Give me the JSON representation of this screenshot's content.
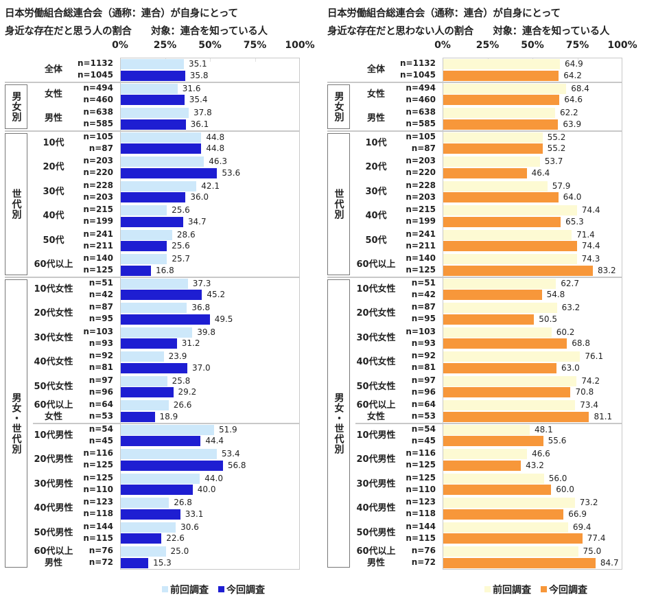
{
  "charts_common": {
    "axis_ticks": [
      "0%",
      "25%",
      "50%",
      "75%",
      "100%"
    ],
    "groups": [
      {
        "label": "男女別",
        "from": 1,
        "to": 2
      },
      {
        "label": "世代別",
        "from": 3,
        "to": 8
      },
      {
        "label": "男女・世代別",
        "from": 9,
        "to": 20
      }
    ],
    "categories": [
      {
        "label": [
          "全体"
        ],
        "n_prev": "n=1132",
        "n_curr": "n=1045"
      },
      {
        "label": [
          "女性"
        ],
        "n_prev": "n=494",
        "n_curr": "n=460"
      },
      {
        "label": [
          "男性"
        ],
        "n_prev": "n=638",
        "n_curr": "n=585"
      },
      {
        "label": [
          "10代"
        ],
        "n_prev": "n=105",
        "n_curr": "n=87"
      },
      {
        "label": [
          "20代"
        ],
        "n_prev": "n=203",
        "n_curr": "n=220"
      },
      {
        "label": [
          "30代"
        ],
        "n_prev": "n=228",
        "n_curr": "n=203"
      },
      {
        "label": [
          "40代"
        ],
        "n_prev": "n=215",
        "n_curr": "n=199"
      },
      {
        "label": [
          "50代"
        ],
        "n_prev": "n=241",
        "n_curr": "n=211"
      },
      {
        "label": [
          "60代以上"
        ],
        "n_prev": "n=140",
        "n_curr": "n=125"
      },
      {
        "label": [
          "10代女性"
        ],
        "n_prev": "n=51",
        "n_curr": "n=42"
      },
      {
        "label": [
          "20代女性"
        ],
        "n_prev": "n=87",
        "n_curr": "n=95"
      },
      {
        "label": [
          "30代女性"
        ],
        "n_prev": "n=103",
        "n_curr": "n=93"
      },
      {
        "label": [
          "40代女性"
        ],
        "n_prev": "n=92",
        "n_curr": "n=81"
      },
      {
        "label": [
          "50代女性"
        ],
        "n_prev": "n=97",
        "n_curr": "n=96"
      },
      {
        "label": [
          "60代以上",
          "女性"
        ],
        "n_prev": "n=64",
        "n_curr": "n=53"
      },
      {
        "label": [
          "10代男性"
        ],
        "n_prev": "n=54",
        "n_curr": "n=45"
      },
      {
        "label": [
          "20代男性"
        ],
        "n_prev": "n=116",
        "n_curr": "n=125"
      },
      {
        "label": [
          "30代男性"
        ],
        "n_prev": "n=125",
        "n_curr": "n=110"
      },
      {
        "label": [
          "40代男性"
        ],
        "n_prev": "n=123",
        "n_curr": "n=118"
      },
      {
        "label": [
          "50代男性"
        ],
        "n_prev": "n=144",
        "n_curr": "n=115"
      },
      {
        "label": [
          "60代以上",
          "男性"
        ],
        "n_prev": "n=76",
        "n_curr": "n=72"
      }
    ]
  },
  "chart_data": [
    {
      "type": "bar",
      "orientation": "horizontal",
      "title": [
        "日本労働組合総連合会（通称：連合）が自身にとって",
        "身近な存在だと思う人の割合　　対象：連合を知っている人"
      ],
      "xlim": [
        0,
        100
      ],
      "grid": true,
      "legend_placement": "bottom",
      "series": [
        {
          "name": "前回調査",
          "color": "#cde8fa",
          "values": [
            35.1,
            31.6,
            37.8,
            44.8,
            46.3,
            42.1,
            25.6,
            28.6,
            25.7,
            37.3,
            36.8,
            39.8,
            23.9,
            25.8,
            26.6,
            51.9,
            53.4,
            44.0,
            26.8,
            30.6,
            25.0
          ]
        },
        {
          "name": "今回調査",
          "color": "#1e1ed2",
          "values": [
            35.8,
            35.4,
            36.1,
            44.8,
            53.6,
            36.0,
            34.7,
            25.6,
            16.8,
            45.2,
            49.5,
            31.2,
            37.0,
            29.2,
            18.9,
            44.4,
            56.8,
            40.0,
            33.1,
            22.6,
            15.3
          ]
        }
      ]
    },
    {
      "type": "bar",
      "orientation": "horizontal",
      "title": [
        "日本労働組合総連合会（通称：連合）が自身にとって",
        "身近な存在だと思わない人の割合　　対象：連合を知っている人"
      ],
      "xlim": [
        0,
        100
      ],
      "grid": true,
      "legend_placement": "bottom",
      "series": [
        {
          "name": "前回調査",
          "color": "#fdfad3",
          "values": [
            64.9,
            68.4,
            62.2,
            55.2,
            53.7,
            57.9,
            74.4,
            71.4,
            74.3,
            62.7,
            63.2,
            60.2,
            76.1,
            74.2,
            73.4,
            48.1,
            46.6,
            56.0,
            73.2,
            69.4,
            75.0
          ]
        },
        {
          "name": "今回調査",
          "color": "#f7973a",
          "values": [
            64.2,
            64.6,
            63.9,
            55.2,
            46.4,
            64.0,
            65.3,
            74.4,
            83.2,
            54.8,
            50.5,
            68.8,
            63.0,
            70.8,
            81.1,
            55.6,
            43.2,
            60.0,
            66.9,
            77.4,
            84.7
          ]
        }
      ]
    }
  ]
}
